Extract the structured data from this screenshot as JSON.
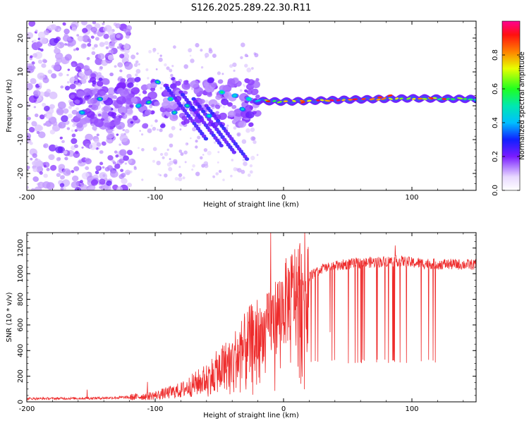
{
  "title": "S126.2025.289.22.30.R11",
  "chart_data": [
    {
      "type": "heatmap",
      "name": "spectrogram",
      "xlabel": "Height of straight line (km)",
      "ylabel": "Frequency (Hz)",
      "xlim": [
        -200,
        150
      ],
      "ylim": [
        -25,
        25
      ],
      "xticks": [
        -200,
        -100,
        0,
        100
      ],
      "yticks": [
        -20,
        -10,
        0,
        10,
        20
      ],
      "colorbar": {
        "label": "Normalized spectral amplitude",
        "range": [
          0,
          1
        ],
        "ticks": [
          "0.0",
          "0.2",
          "0.4",
          "0.6",
          "0.8"
        ]
      },
      "ridge": {
        "x": [
          -22,
          0,
          50,
          100,
          150
        ],
        "y": [
          1.5,
          1.2,
          1.8,
          2.2,
          2.0
        ],
        "amplitude": [
          0.45,
          0.7,
          0.82,
          0.7,
          0.45
        ]
      }
    },
    {
      "type": "line",
      "name": "snr",
      "xlabel": "Height of straight line (km)",
      "ylabel": "SNR (10 * v/v)",
      "xlim": [
        -200,
        150
      ],
      "ylim": [
        0,
        1320
      ],
      "xticks": [
        -200,
        -100,
        0,
        100
      ],
      "yticks": [
        0,
        200,
        400,
        600,
        800,
        1000,
        1200
      ],
      "color": "#ee2b2b",
      "envelope": {
        "x": [
          -200,
          -150,
          -120,
          -100,
          -80,
          -60,
          -40,
          -20,
          -10,
          0,
          10,
          20,
          30,
          50,
          70,
          90,
          100,
          120,
          150
        ],
        "y": [
          25,
          28,
          35,
          50,
          90,
          180,
          320,
          500,
          620,
          750,
          880,
          980,
          1040,
          1075,
          1090,
          1100,
          1085,
          1075,
          1070
        ]
      },
      "annotations": [
        {
          "x": -153,
          "y": 95
        },
        {
          "x": -106,
          "y": 155
        },
        {
          "x": -10,
          "y": 1320
        },
        {
          "x": 87,
          "y": 1220
        }
      ]
    }
  ]
}
